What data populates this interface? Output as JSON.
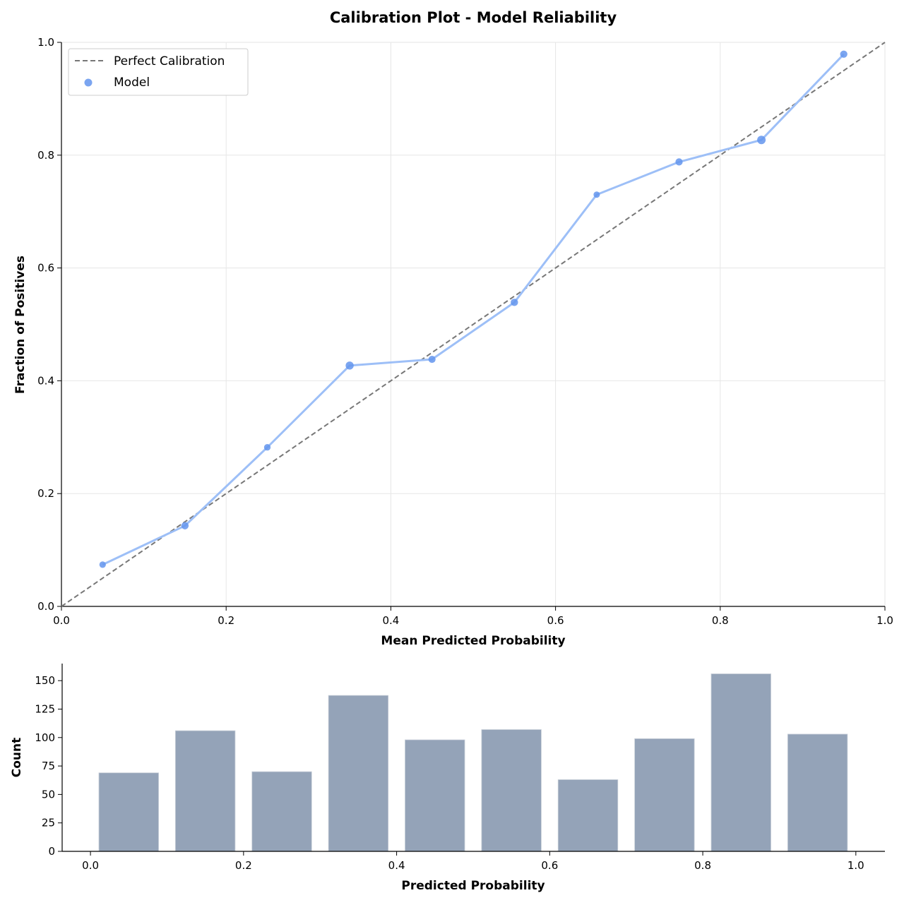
{
  "chart_data": [
    {
      "type": "line",
      "title": "Calibration Plot - Model Reliability",
      "xlabel": "Mean Predicted Probability",
      "ylabel": "Fraction of Positives",
      "xlim": [
        0,
        1
      ],
      "ylim": [
        0,
        1
      ],
      "xticks": [
        "0.0",
        "0.2",
        "0.4",
        "0.6",
        "0.8",
        "1.0"
      ],
      "yticks": [
        "0.0",
        "0.2",
        "0.4",
        "0.6",
        "0.8",
        "1.0"
      ],
      "grid": true,
      "legend_position": "top-left",
      "series": [
        {
          "name": "Perfect Calibration",
          "x": [
            0,
            1
          ],
          "y": [
            0,
            1
          ],
          "color": "#777777",
          "style": "dashed"
        },
        {
          "name": "Model",
          "x": [
            0.05,
            0.15,
            0.25,
            0.35,
            0.45,
            0.55,
            0.65,
            0.75,
            0.85,
            0.95
          ],
          "y": [
            0.074,
            0.143,
            0.282,
            0.427,
            0.438,
            0.539,
            0.73,
            0.788,
            0.827,
            0.979
          ],
          "color": "#6495ed"
        }
      ]
    },
    {
      "type": "bar",
      "xlabel": "Predicted Probability",
      "ylabel": "Count",
      "xlim": [
        -0.037,
        1.038
      ],
      "ylim": [
        0,
        165
      ],
      "xticks": [
        "0.0",
        "0.2",
        "0.4",
        "0.6",
        "0.8",
        "1.0"
      ],
      "yticks": [
        "0",
        "25",
        "50",
        "75",
        "100",
        "125",
        "150"
      ],
      "x": [
        0.05,
        0.15,
        0.25,
        0.35,
        0.45,
        0.55,
        0.65,
        0.75,
        0.85,
        0.95
      ],
      "values": [
        69,
        106,
        70,
        137,
        98,
        107,
        63,
        99,
        156,
        103
      ],
      "color": "#94a3b8"
    }
  ]
}
